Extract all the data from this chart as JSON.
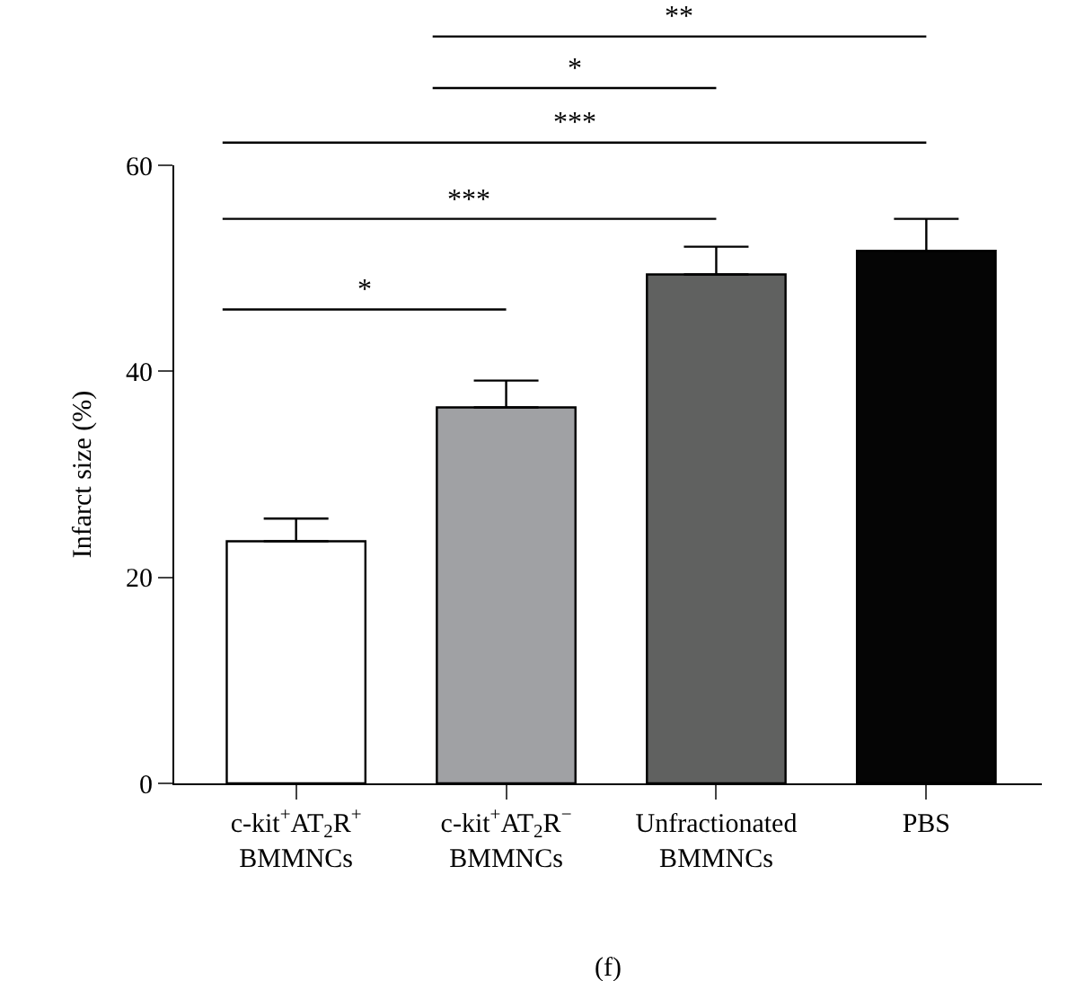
{
  "chart_data": {
    "type": "bar",
    "ylabel": "Infarct size (%)",
    "categories": [
      "c-kit$^{+}$AT$_{2}$R$^{+}$\nBMMNCs",
      "c-kit$^{+}$AT$_{2}$R$^{−}$\nBMMNCs",
      "Unfractionated\nBMMNCs",
      "PBS"
    ],
    "values": [
      23.5,
      36.5,
      49.4,
      51.7
    ],
    "errors": [
      2.2,
      2.6,
      2.7,
      3.1
    ],
    "colors": [
      "#ffffff",
      "#a0a1a4",
      "#606160",
      "#050505"
    ],
    "ylim": [
      0,
      60
    ],
    "yticks": [
      0,
      20,
      40,
      60
    ],
    "annotations": [
      "*",
      "***",
      "***",
      "*",
      "**",
      "(f)"
    ]
  }
}
